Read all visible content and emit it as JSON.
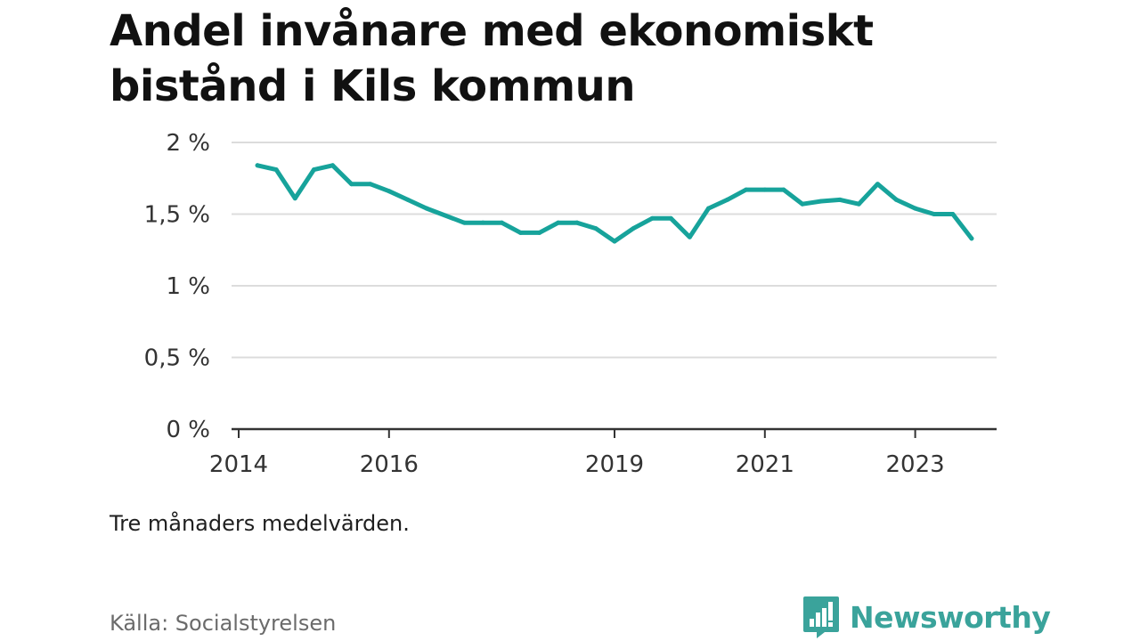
{
  "title_lines": [
    "Andel invånare med ekonomiskt",
    "bistånd i Kils kommun"
  ],
  "note": "Tre månaders medelvärden.",
  "source": "Källa: Socialstyrelsen",
  "brand": {
    "name": "Newsworthy",
    "icon": "newsworthy-logo-icon",
    "color": "#3aa39b"
  },
  "chart_data": {
    "type": "line",
    "title": "Andel invånare med ekonomiskt bistånd i Kils kommun",
    "xlabel": "",
    "ylabel": "",
    "y_unit": "%",
    "ylim": [
      0,
      2
    ],
    "y_ticks": [
      {
        "value": 0,
        "label": "0 %"
      },
      {
        "value": 0.5,
        "label": "0,5 %"
      },
      {
        "value": 1,
        "label": "1 %"
      },
      {
        "value": 1.5,
        "label": "1,5 %"
      },
      {
        "value": 2,
        "label": "2 %"
      }
    ],
    "xlim": [
      "2014-01",
      "2024-01"
    ],
    "x_ticks": [
      {
        "value": "2014-01",
        "label": "2014"
      },
      {
        "value": "2016-01",
        "label": "2016"
      },
      {
        "value": "2019-01",
        "label": "2019"
      },
      {
        "value": "2021-01",
        "label": "2021"
      },
      {
        "value": "2023-01",
        "label": "2023"
      }
    ],
    "grid": true,
    "line_color": "#17a39b",
    "series": [
      {
        "points": [
          {
            "x": "2014-04",
            "y": 1.84
          },
          {
            "x": "2014-07",
            "y": 1.81
          },
          {
            "x": "2014-10",
            "y": 1.61
          },
          {
            "x": "2015-01",
            "y": 1.81
          },
          {
            "x": "2015-04",
            "y": 1.84
          },
          {
            "x": "2015-07",
            "y": 1.71
          },
          {
            "x": "2015-10",
            "y": 1.71
          },
          {
            "x": "2016-01",
            "y": 1.66
          },
          {
            "x": "2016-04",
            "y": 1.6
          },
          {
            "x": "2016-07",
            "y": 1.54
          },
          {
            "x": "2016-10",
            "y": 1.49
          },
          {
            "x": "2017-01",
            "y": 1.44
          },
          {
            "x": "2017-04",
            "y": 1.44
          },
          {
            "x": "2017-07",
            "y": 1.44
          },
          {
            "x": "2017-10",
            "y": 1.37
          },
          {
            "x": "2018-01",
            "y": 1.37
          },
          {
            "x": "2018-04",
            "y": 1.44
          },
          {
            "x": "2018-07",
            "y": 1.44
          },
          {
            "x": "2018-10",
            "y": 1.4
          },
          {
            "x": "2019-01",
            "y": 1.31
          },
          {
            "x": "2019-04",
            "y": 1.4
          },
          {
            "x": "2019-07",
            "y": 1.47
          },
          {
            "x": "2019-10",
            "y": 1.47
          },
          {
            "x": "2020-01",
            "y": 1.34
          },
          {
            "x": "2020-04",
            "y": 1.54
          },
          {
            "x": "2020-07",
            "y": 1.6
          },
          {
            "x": "2020-10",
            "y": 1.67
          },
          {
            "x": "2021-01",
            "y": 1.67
          },
          {
            "x": "2021-04",
            "y": 1.67
          },
          {
            "x": "2021-07",
            "y": 1.57
          },
          {
            "x": "2021-10",
            "y": 1.59
          },
          {
            "x": "2022-01",
            "y": 1.6
          },
          {
            "x": "2022-04",
            "y": 1.57
          },
          {
            "x": "2022-07",
            "y": 1.71
          },
          {
            "x": "2022-10",
            "y": 1.6
          },
          {
            "x": "2023-01",
            "y": 1.54
          },
          {
            "x": "2023-04",
            "y": 1.5
          },
          {
            "x": "2023-07",
            "y": 1.5
          },
          {
            "x": "2023-10",
            "y": 1.33
          }
        ]
      }
    ]
  }
}
